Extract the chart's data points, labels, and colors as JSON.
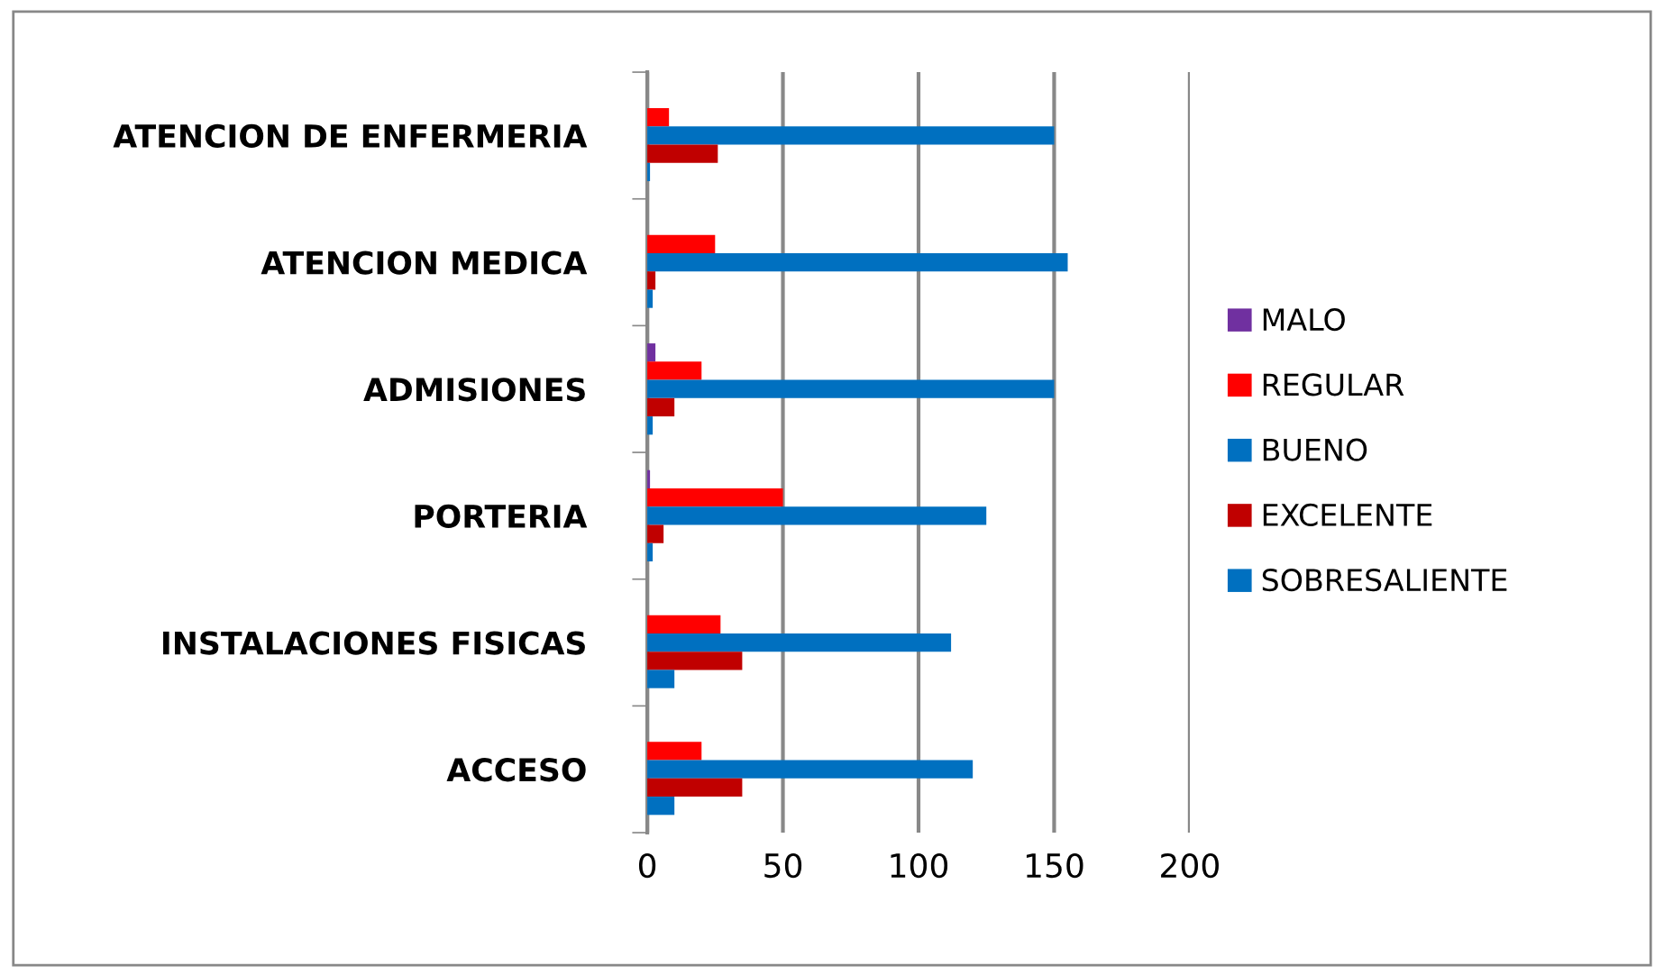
{
  "chart_data": {
    "type": "bar",
    "orientation": "horizontal",
    "categories": [
      "ATENCION DE ENFERMERIA",
      "ATENCION MEDICA",
      "ADMISIONES",
      "PORTERIA",
      "INSTALACIONES FISICAS",
      "ACCESO"
    ],
    "series": [
      {
        "name": "MALO",
        "color": "#7030a0",
        "values": [
          0,
          0,
          3,
          1,
          0,
          0
        ]
      },
      {
        "name": "REGULAR",
        "color": "#ff0000",
        "values": [
          8,
          25,
          20,
          50,
          27,
          20
        ]
      },
      {
        "name": "BUENO",
        "color": "#0070c0",
        "values": [
          150,
          155,
          150,
          125,
          112,
          120
        ]
      },
      {
        "name": "EXCELENTE",
        "color": "#c00000",
        "values": [
          26,
          3,
          10,
          6,
          35,
          35
        ]
      },
      {
        "name": "SOBRESALIENTE",
        "color": "#0070c0",
        "values": [
          1,
          2,
          2,
          2,
          10,
          10
        ]
      }
    ],
    "xlim": [
      0,
      200
    ],
    "xticks": [
      0,
      50,
      100,
      150,
      200
    ],
    "grid": "x",
    "legend": "right"
  }
}
